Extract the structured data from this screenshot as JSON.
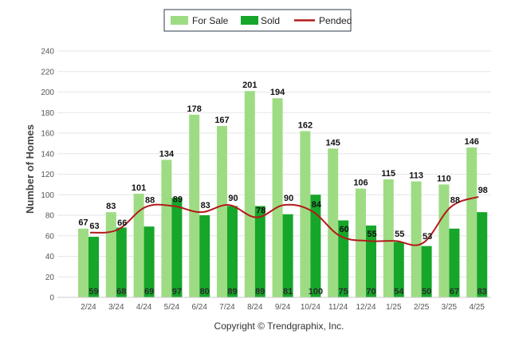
{
  "chart_data": {
    "type": "bar",
    "categories": [
      "2/24",
      "3/24",
      "4/24",
      "5/24",
      "6/24",
      "7/24",
      "8/24",
      "9/24",
      "10/24",
      "11/24",
      "12/24",
      "1/25",
      "2/25",
      "3/25",
      "4/25"
    ],
    "series": [
      {
        "name": "For Sale",
        "type": "bar",
        "color": "#9edc84",
        "values": [
          67,
          83,
          101,
          134,
          178,
          167,
          201,
          194,
          162,
          145,
          106,
          115,
          113,
          110,
          146
        ]
      },
      {
        "name": "Sold",
        "type": "bar",
        "color": "#16a62a",
        "values": [
          59,
          68,
          69,
          97,
          80,
          89,
          89,
          81,
          100,
          75,
          70,
          54,
          50,
          67,
          83
        ]
      },
      {
        "name": "Pended",
        "type": "line",
        "color": "#b21a1a",
        "values": [
          63,
          66,
          88,
          89,
          83,
          90,
          78,
          90,
          84,
          60,
          55,
          55,
          53,
          88,
          98
        ]
      }
    ],
    "ylabel": "Number of Homes",
    "ylim": [
      0,
      240
    ],
    "yticks": [
      0,
      20,
      40,
      60,
      80,
      100,
      120,
      140,
      160,
      180,
      200,
      220,
      240
    ],
    "grid": true,
    "legend_position": "top-center"
  },
  "footer": {
    "copyright": "Copyright © Trendgraphix, Inc."
  }
}
